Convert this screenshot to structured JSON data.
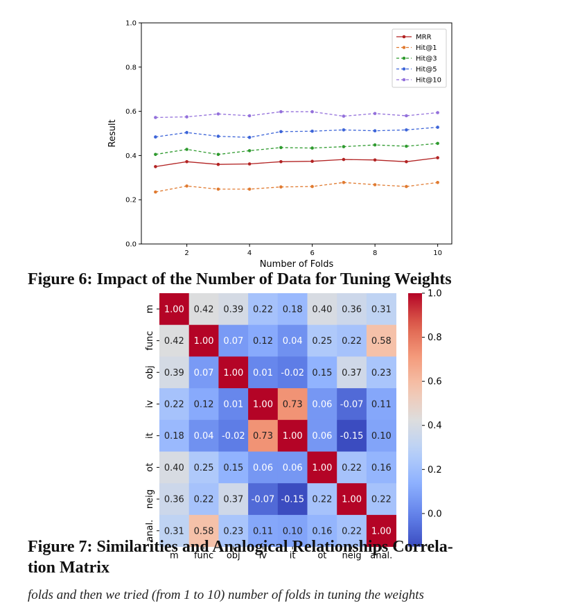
{
  "figure6": {
    "caption": "Figure 6: Impact of the Number of Data for Tuning Weights",
    "chart_data": {
      "type": "line",
      "x": [
        1,
        2,
        3,
        4,
        5,
        6,
        7,
        8,
        9,
        10
      ],
      "xlabel": "Number of Folds",
      "ylabel": "Result",
      "xticks": [
        2,
        4,
        6,
        8,
        10
      ],
      "yticks": [
        0.0,
        0.2,
        0.4,
        0.6,
        0.8,
        1.0
      ],
      "ytick_labels": [
        "0.0",
        "0.2",
        "0.4",
        "0.6",
        "0.8",
        "1.0"
      ],
      "xlim": [
        0.55,
        10.45
      ],
      "ylim": [
        0,
        1.0
      ],
      "legend_position": "top-right",
      "grid": false,
      "series": [
        {
          "name": "MRR",
          "color": "#b22222",
          "dashed": false,
          "values": [
            0.35,
            0.372,
            0.36,
            0.362,
            0.372,
            0.374,
            0.382,
            0.38,
            0.372,
            0.39
          ]
        },
        {
          "name": "Hit@1",
          "color": "#e07a30",
          "dashed": true,
          "values": [
            0.235,
            0.262,
            0.248,
            0.248,
            0.258,
            0.26,
            0.278,
            0.268,
            0.26,
            0.278
          ]
        },
        {
          "name": "Hit@3",
          "color": "#2e9a2e",
          "dashed": true,
          "values": [
            0.405,
            0.428,
            0.405,
            0.422,
            0.436,
            0.434,
            0.44,
            0.448,
            0.442,
            0.455
          ]
        },
        {
          "name": "Hit@5",
          "color": "#3c64d8",
          "dashed": true,
          "values": [
            0.484,
            0.504,
            0.487,
            0.482,
            0.508,
            0.51,
            0.516,
            0.512,
            0.516,
            0.528
          ]
        },
        {
          "name": "Hit@10",
          "color": "#9370db",
          "dashed": true,
          "values": [
            0.572,
            0.575,
            0.588,
            0.58,
            0.598,
            0.598,
            0.578,
            0.59,
            0.58,
            0.594
          ]
        }
      ]
    }
  },
  "figure7": {
    "caption": "Figure 7: Similarities and Analogical Relationships Correlation Matrix",
    "caption_line1": "Figure 7: Similarities and Analogical Relationships Correla-",
    "caption_line2": "tion Matrix",
    "chart_data": {
      "type": "heatmap",
      "colormap": "coolwarm",
      "labels": [
        "m",
        "func",
        "obj",
        "iv",
        "it",
        "ot",
        "neig",
        "anal."
      ],
      "matrix": [
        [
          1.0,
          0.42,
          0.39,
          0.22,
          0.18,
          0.4,
          0.36,
          0.31
        ],
        [
          0.42,
          1.0,
          0.07,
          0.12,
          0.04,
          0.25,
          0.22,
          0.58
        ],
        [
          0.39,
          0.07,
          1.0,
          0.01,
          -0.02,
          0.15,
          0.37,
          0.23
        ],
        [
          0.22,
          0.12,
          0.01,
          1.0,
          0.73,
          0.06,
          -0.07,
          0.11
        ],
        [
          0.18,
          0.04,
          -0.02,
          0.73,
          1.0,
          0.06,
          -0.15,
          0.1
        ],
        [
          0.4,
          0.25,
          0.15,
          0.06,
          0.06,
          1.0,
          0.22,
          0.16
        ],
        [
          0.36,
          0.22,
          0.37,
          -0.07,
          -0.15,
          0.22,
          1.0,
          0.22
        ],
        [
          0.31,
          0.58,
          0.23,
          0.11,
          0.1,
          0.16,
          0.22,
          1.0
        ]
      ],
      "colorbar_ticks": [
        0.0,
        0.2,
        0.4,
        0.6,
        0.8,
        1.0
      ],
      "colorbar_tick_labels": [
        "0.0",
        "0.2",
        "0.4",
        "0.6",
        "0.8",
        "1.0"
      ],
      "colorbar_range": [
        -0.15,
        1.0
      ]
    }
  },
  "body_text_fragment": "folds and then we tried (from 1 to 10) number of folds in tuning the weights"
}
